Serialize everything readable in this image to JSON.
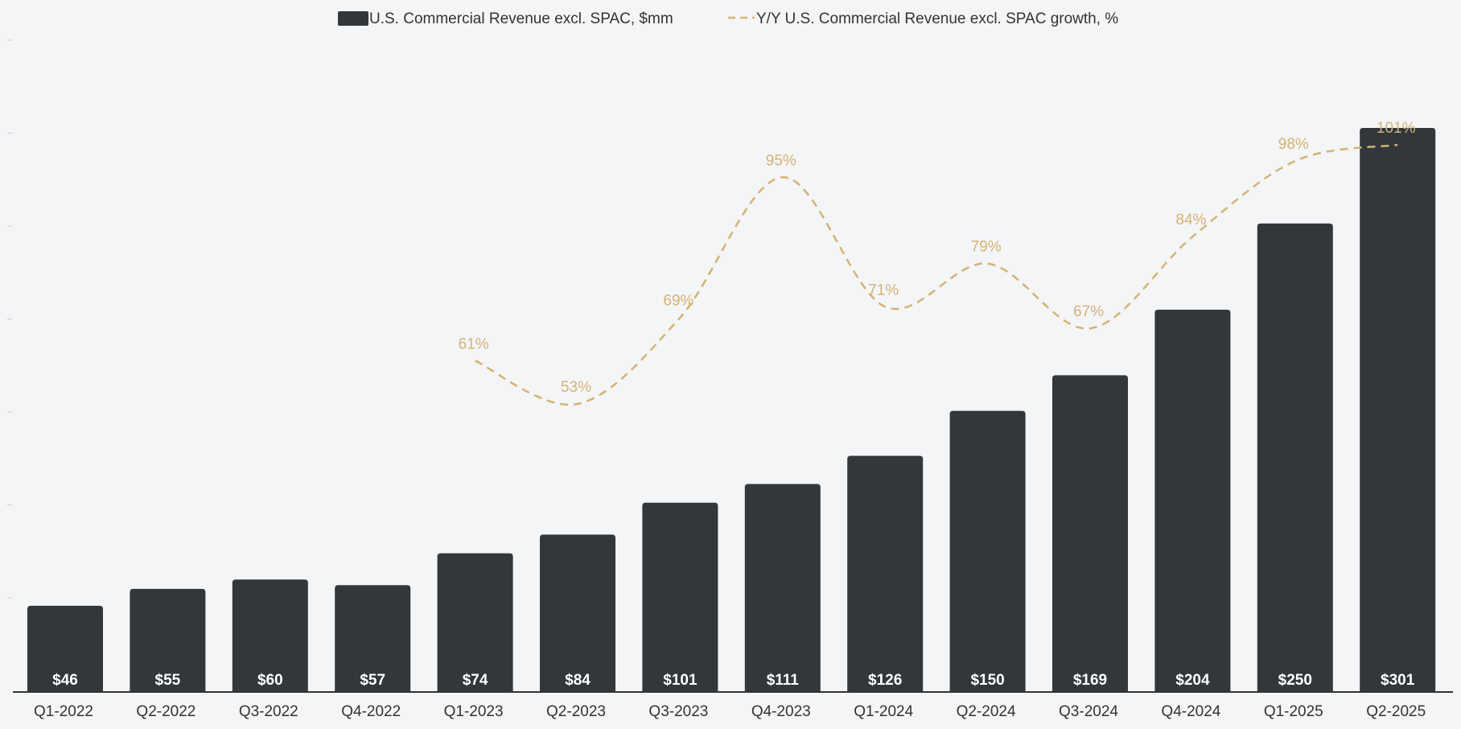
{
  "chart_data": {
    "type": "bar",
    "title": "",
    "xlabel": "",
    "ylabel": "",
    "categories": [
      "Q1-2022",
      "Q2-2022",
      "Q3-2022",
      "Q4-2022",
      "Q1-2023",
      "Q2-2023",
      "Q3-2023",
      "Q4-2023",
      "Q1-2024",
      "Q2-2024",
      "Q3-2024",
      "Q4-2024",
      "Q1-2025",
      "Q2-2025"
    ],
    "series": [
      {
        "name": "U.S. Commercial Revenue excl. SPAC, $mm",
        "kind": "bar",
        "values": [
          46,
          55,
          60,
          57,
          74,
          84,
          101,
          111,
          126,
          150,
          169,
          204,
          250,
          301
        ],
        "labels": [
          "$46",
          "$55",
          "$60",
          "$57",
          "$74",
          "$84",
          "$101",
          "$111",
          "$126",
          "$150",
          "$169",
          "$204",
          "$250",
          "$301"
        ],
        "color": "#31373b",
        "label_color": "#ffffff"
      },
      {
        "name": "Y/Y U.S. Commercial Revenue excl. SPAC growth, %",
        "kind": "line",
        "style": "dashed",
        "values": [
          null,
          null,
          null,
          null,
          61,
          53,
          69,
          95,
          71,
          79,
          67,
          84,
          98,
          101
        ],
        "labels": [
          "",
          "",
          "",
          "",
          "61%",
          "53%",
          "69%",
          "95%",
          "71%",
          "79%",
          "67%",
          "84%",
          "98%",
          "101%"
        ],
        "color": "#d4b374"
      }
    ],
    "ylim": [
      0,
      310
    ],
    "y2lim": [
      -25,
      120
    ],
    "grid": false,
    "legend": "top-center",
    "legend_labels": {
      "bars": "U.S. Commercial Revenue excl. SPAC, $mm",
      "line": "Y/Y U.S. Commercial Revenue excl. SPAC growth, %"
    }
  },
  "colors": {
    "background": "#f4f5f7",
    "bar": "#31373b",
    "line": "#d4b374",
    "axis": "#333333",
    "tick_text": "#333333"
  }
}
